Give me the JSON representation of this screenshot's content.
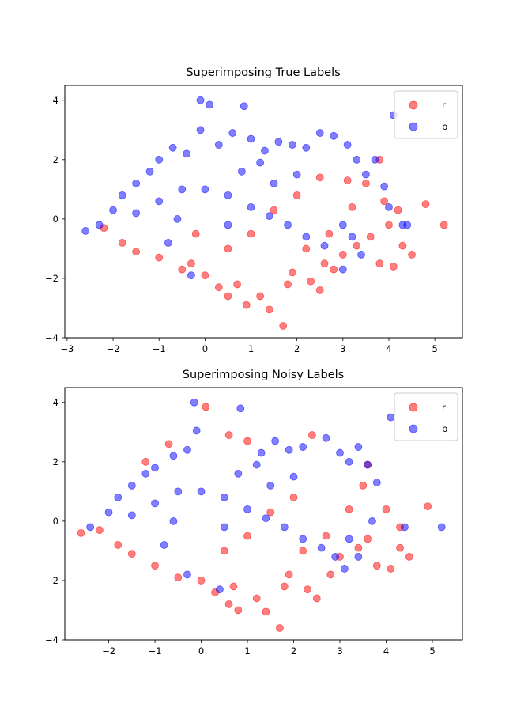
{
  "colors": {
    "red": "#ff0000",
    "blue": "#0000ff"
  },
  "chart_data": [
    {
      "type": "scatter",
      "title": "Superimposing True Labels",
      "xlim": [
        -3.05,
        5.6
      ],
      "ylim": [
        -4,
        4.5
      ],
      "xticks": [
        "−3",
        "−2",
        "−1",
        "0",
        "1",
        "2",
        "3",
        "4",
        "5"
      ],
      "xtick_values": [
        -3,
        -2,
        -1,
        0,
        1,
        2,
        3,
        4,
        5
      ],
      "yticks": [
        "−4",
        "−2",
        "0",
        "2",
        "4"
      ],
      "ytick_values": [
        -4,
        -2,
        0,
        2,
        4
      ],
      "legend_position": "top-right",
      "series": [
        {
          "name": "r",
          "color": "#ff0000",
          "points": [
            [
              -2.2,
              -0.3
            ],
            [
              -1.8,
              -0.8
            ],
            [
              -1.5,
              -1.1
            ],
            [
              -1.0,
              -1.3
            ],
            [
              -0.5,
              -1.7
            ],
            [
              0.0,
              -1.9
            ],
            [
              0.3,
              -2.3
            ],
            [
              0.5,
              -2.6
            ],
            [
              0.9,
              -2.9
            ],
            [
              1.4,
              -3.05
            ],
            [
              1.7,
              -3.6
            ],
            [
              1.2,
              -2.6
            ],
            [
              1.8,
              -2.2
            ],
            [
              2.3,
              -2.1
            ],
            [
              2.5,
              -2.4
            ],
            [
              2.8,
              -1.7
            ],
            [
              3.0,
              -1.2
            ],
            [
              3.3,
              -0.9
            ],
            [
              3.6,
              -0.6
            ],
            [
              3.8,
              -1.5
            ],
            [
              4.1,
              -1.6
            ],
            [
              4.3,
              -0.9
            ],
            [
              4.5,
              -1.2
            ],
            [
              4.0,
              -0.2
            ],
            [
              4.8,
              0.5
            ],
            [
              5.2,
              -0.2
            ],
            [
              3.5,
              1.2
            ],
            [
              3.8,
              2.0
            ],
            [
              3.1,
              1.3
            ],
            [
              2.5,
              1.4
            ],
            [
              2.0,
              0.8
            ],
            [
              1.5,
              0.3
            ],
            [
              1.0,
              -0.5
            ],
            [
              0.5,
              -1.0
            ],
            [
              -0.2,
              -0.5
            ],
            [
              2.2,
              -1.0
            ],
            [
              2.7,
              -0.5
            ],
            [
              3.2,
              0.4
            ],
            [
              2.6,
              -1.5
            ],
            [
              1.9,
              -1.8
            ],
            [
              0.7,
              -2.2
            ],
            [
              -0.3,
              -1.5
            ],
            [
              4.2,
              0.3
            ],
            [
              3.9,
              0.6
            ]
          ]
        },
        {
          "name": "b",
          "color": "#0000ff",
          "points": [
            [
              -2.6,
              -0.4
            ],
            [
              -2.3,
              -0.2
            ],
            [
              -2.0,
              0.3
            ],
            [
              -1.8,
              0.8
            ],
            [
              -1.5,
              1.2
            ],
            [
              -1.2,
              1.6
            ],
            [
              -1.0,
              2.0
            ],
            [
              -0.7,
              2.4
            ],
            [
              -0.4,
              2.2
            ],
            [
              -0.1,
              3.0
            ],
            [
              -0.1,
              4.0
            ],
            [
              0.1,
              3.85
            ],
            [
              0.85,
              3.8
            ],
            [
              1.0,
              2.7
            ],
            [
              0.6,
              2.9
            ],
            [
              0.3,
              2.5
            ],
            [
              1.3,
              2.3
            ],
            [
              1.6,
              2.6
            ],
            [
              1.9,
              2.5
            ],
            [
              2.2,
              2.4
            ],
            [
              2.5,
              2.9
            ],
            [
              2.8,
              2.8
            ],
            [
              3.1,
              2.5
            ],
            [
              3.3,
              2.0
            ],
            [
              3.5,
              1.5
            ],
            [
              3.9,
              1.1
            ],
            [
              4.0,
              0.4
            ],
            [
              4.3,
              -0.2
            ],
            [
              4.4,
              -0.2
            ],
            [
              3.0,
              -0.2
            ],
            [
              3.2,
              -0.6
            ],
            [
              3.4,
              -1.2
            ],
            [
              3.0,
              -1.7
            ],
            [
              2.6,
              -0.9
            ],
            [
              2.2,
              -0.6
            ],
            [
              1.8,
              -0.2
            ],
            [
              1.4,
              0.1
            ],
            [
              1.0,
              0.4
            ],
            [
              0.5,
              0.8
            ],
            [
              0.0,
              1.0
            ],
            [
              -0.5,
              1.0
            ],
            [
              -1.0,
              0.6
            ],
            [
              -1.5,
              0.2
            ],
            [
              -0.8,
              -0.8
            ],
            [
              -0.3,
              -1.9
            ],
            [
              0.5,
              -0.2
            ],
            [
              2.0,
              1.5
            ],
            [
              1.5,
              1.2
            ],
            [
              3.7,
              2.0
            ],
            [
              4.1,
              3.5
            ],
            [
              -0.6,
              0.0
            ],
            [
              0.8,
              1.6
            ],
            [
              1.2,
              1.9
            ]
          ]
        }
      ]
    },
    {
      "type": "scatter",
      "title": "Superimposing Noisy Labels",
      "xlim": [
        -2.95,
        5.65
      ],
      "ylim": [
        -4,
        4.5
      ],
      "xticks": [
        "−2",
        "−1",
        "0",
        "1",
        "2",
        "3",
        "4",
        "5"
      ],
      "xtick_values": [
        -2,
        -1,
        0,
        1,
        2,
        3,
        4,
        5
      ],
      "yticks": [
        "−4",
        "−2",
        "0",
        "2",
        "4"
      ],
      "ytick_values": [
        -4,
        -2,
        0,
        2,
        4
      ],
      "legend_position": "top-right",
      "series": [
        {
          "name": "r",
          "color": "#ff0000",
          "points": [
            [
              -2.6,
              -0.4
            ],
            [
              -2.2,
              -0.3
            ],
            [
              -1.8,
              -0.8
            ],
            [
              -1.5,
              -1.1
            ],
            [
              -1.0,
              -1.5
            ],
            [
              -0.5,
              -1.9
            ],
            [
              0.0,
              -2.0
            ],
            [
              0.3,
              -2.4
            ],
            [
              0.6,
              -2.8
            ],
            [
              0.8,
              -3.0
            ],
            [
              1.4,
              -3.05
            ],
            [
              1.7,
              -3.6
            ],
            [
              1.2,
              -2.6
            ],
            [
              1.8,
              -2.2
            ],
            [
              2.3,
              -2.3
            ],
            [
              2.5,
              -2.6
            ],
            [
              2.8,
              -1.8
            ],
            [
              3.0,
              -1.2
            ],
            [
              3.4,
              -0.9
            ],
            [
              3.6,
              -0.6
            ],
            [
              3.8,
              -1.5
            ],
            [
              4.1,
              -1.6
            ],
            [
              4.3,
              -0.9
            ],
            [
              4.5,
              -1.2
            ],
            [
              4.3,
              -0.2
            ],
            [
              4.9,
              0.5
            ],
            [
              3.5,
              1.2
            ],
            [
              3.6,
              1.9
            ],
            [
              2.4,
              2.9
            ],
            [
              0.1,
              3.85
            ],
            [
              0.6,
              2.9
            ],
            [
              1.0,
              2.7
            ],
            [
              -0.7,
              2.6
            ],
            [
              -1.2,
              2.0
            ],
            [
              2.0,
              0.8
            ],
            [
              1.5,
              0.3
            ],
            [
              1.0,
              -0.5
            ],
            [
              0.5,
              -1.0
            ],
            [
              2.2,
              -1.0
            ],
            [
              2.7,
              -0.5
            ],
            [
              3.2,
              0.4
            ],
            [
              4.0,
              0.4
            ],
            [
              1.9,
              -1.8
            ],
            [
              0.7,
              -2.2
            ]
          ]
        },
        {
          "name": "b",
          "color": "#0000ff",
          "points": [
            [
              -2.4,
              -0.2
            ],
            [
              -2.0,
              0.3
            ],
            [
              -1.8,
              0.8
            ],
            [
              -1.5,
              1.2
            ],
            [
              -1.2,
              1.6
            ],
            [
              -1.0,
              1.8
            ],
            [
              -0.6,
              2.2
            ],
            [
              -0.3,
              2.4
            ],
            [
              -0.1,
              3.05
            ],
            [
              -0.15,
              4.0
            ],
            [
              0.85,
              3.8
            ],
            [
              1.3,
              2.3
            ],
            [
              1.6,
              2.7
            ],
            [
              1.9,
              2.4
            ],
            [
              2.2,
              2.5
            ],
            [
              2.7,
              2.8
            ],
            [
              3.0,
              2.3
            ],
            [
              3.2,
              2.0
            ],
            [
              3.4,
              2.5
            ],
            [
              3.6,
              1.9
            ],
            [
              3.8,
              1.3
            ],
            [
              4.1,
              3.5
            ],
            [
              5.2,
              -0.2
            ],
            [
              4.4,
              -0.2
            ],
            [
              3.2,
              -0.6
            ],
            [
              3.4,
              -1.2
            ],
            [
              3.1,
              -1.6
            ],
            [
              2.6,
              -0.9
            ],
            [
              2.2,
              -0.6
            ],
            [
              1.8,
              -0.2
            ],
            [
              1.4,
              0.1
            ],
            [
              1.0,
              0.4
            ],
            [
              0.5,
              0.8
            ],
            [
              0.0,
              1.0
            ],
            [
              -0.5,
              1.0
            ],
            [
              -1.0,
              0.6
            ],
            [
              -1.5,
              0.2
            ],
            [
              -0.8,
              -0.8
            ],
            [
              -0.3,
              -1.8
            ],
            [
              0.5,
              -0.2
            ],
            [
              2.0,
              1.5
            ],
            [
              1.5,
              1.2
            ],
            [
              0.8,
              1.6
            ],
            [
              1.2,
              1.9
            ],
            [
              0.4,
              -2.3
            ],
            [
              -0.6,
              0.0
            ],
            [
              3.7,
              0.0
            ],
            [
              2.9,
              -1.2
            ]
          ]
        }
      ]
    }
  ]
}
